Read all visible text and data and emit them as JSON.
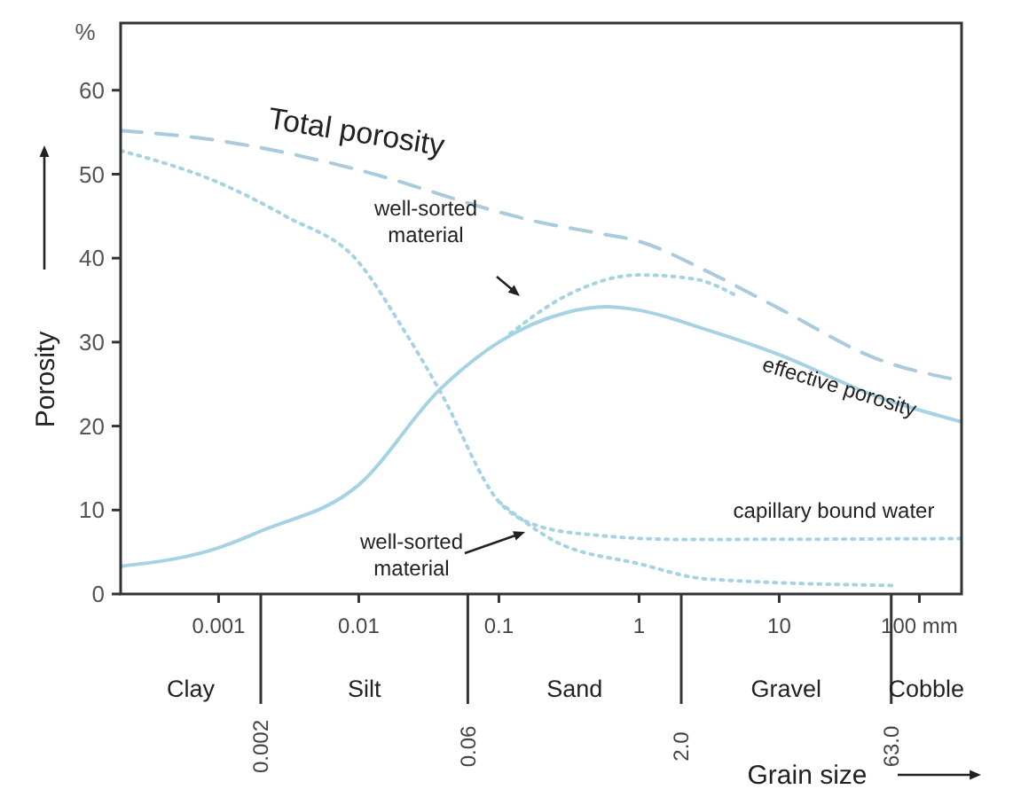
{
  "chart_data": {
    "type": "line",
    "xlabel": "Grain size",
    "ylabel": "Porosity",
    "log": "x",
    "grid": false,
    "xlim": [
      0.0002,
      200
    ],
    "ylim": [
      0,
      68
    ],
    "xticks": [
      0.001,
      0.01,
      0.1,
      1,
      10,
      {
        "value": 100,
        "label": "100 mm"
      }
    ],
    "yticks": [
      0,
      10,
      20,
      30,
      40,
      50,
      60
    ],
    "series": [
      {
        "color": "#a9cbdc",
        "line_style": "dashed",
        "x": [
          0.0002,
          0.001,
          0.01,
          0.1,
          0.17,
          0.5,
          1,
          3,
          10,
          50,
          200
        ],
        "values": [
          55.2,
          54,
          50.5,
          45.5,
          44.5,
          43,
          42,
          38.5,
          34,
          28,
          25.4
        ]
      },
      {
        "color": "#a6d3e4",
        "line_style": "solid",
        "x": [
          0.0002,
          0.001,
          0.002,
          0.01,
          0.0376,
          0.1,
          0.3,
          0.58,
          1,
          3,
          10,
          50,
          200
        ],
        "values": [
          3.3,
          5.5,
          7.5,
          13,
          24.3,
          30,
          33.5,
          34.2,
          33.8,
          31.5,
          28.5,
          23.5,
          20.5
        ]
      },
      {
        "color": "#a6d3e4",
        "line_style": "dotted",
        "x": [
          0.12,
          0.3,
          1,
          2.5,
          5
        ],
        "values": [
          31,
          35.5,
          38,
          37.5,
          35.5
        ]
      },
      {
        "color": "#a6d3e4",
        "line_style": "dotted",
        "x": [
          0.0002,
          0.001,
          0.003,
          0.01,
          0.02,
          0.0376,
          0.1,
          0.2,
          0.5,
          2,
          200
        ],
        "values": [
          52.8,
          49,
          45,
          39.5,
          32,
          24.3,
          11,
          8,
          7,
          6.5,
          6.6
        ]
      },
      {
        "color": "#a6d3e4",
        "line_style": "dotted",
        "x": [
          0.1,
          0.25,
          1,
          3,
          70
        ],
        "values": [
          11,
          6.3,
          3.6,
          1.8,
          1
        ]
      }
    ],
    "ref_lines": [
      {
        "axis": "x",
        "value": 0.002,
        "label": "0.002"
      },
      {
        "axis": "x",
        "value": 0.06,
        "label": "0.06"
      },
      {
        "axis": "x",
        "value": 2,
        "label": "2.0"
      },
      {
        "axis": "x",
        "value": 63,
        "label": "63.0"
      }
    ],
    "annotations": [
      "%",
      "Total porosity",
      "well-sorted material",
      "effective porosity",
      "capillary bound water",
      "well-sorted material",
      "Clay",
      "Silt",
      "Sand",
      "Gravel",
      "Cobble"
    ]
  }
}
